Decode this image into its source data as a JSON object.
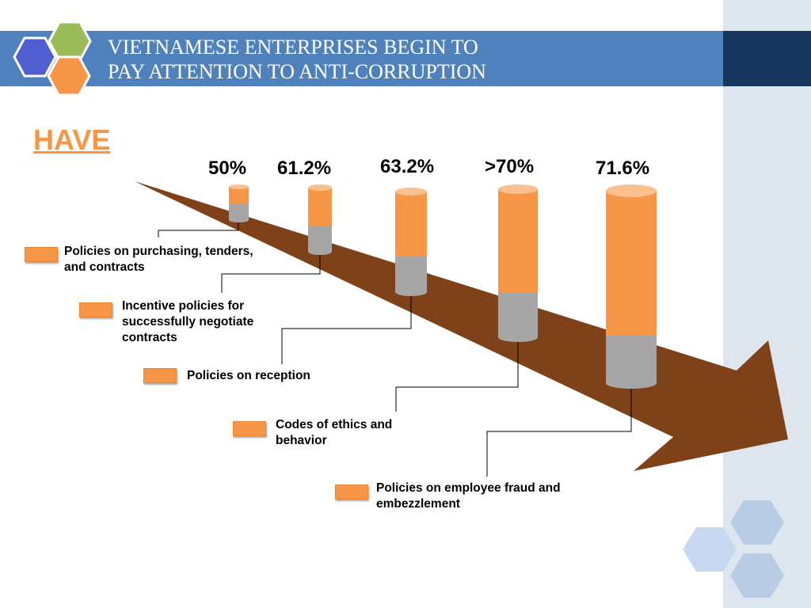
{
  "title": {
    "line1": "VIETNAMESE ENTERPRISES BEGIN TO",
    "line2": "PAY ATTENTION TO ANTI-CORRUPTION"
  },
  "heading": "HAVE",
  "percentages": [
    "50%",
    "61.2%",
    "63.2%",
    ">70%",
    "71.6%"
  ],
  "legend": [
    {
      "label": "Policies on purchasing, tenders, and contracts"
    },
    {
      "label": "Incentive policies for successfully negotiate contracts"
    },
    {
      "label": "Policies on reception"
    },
    {
      "label": "Codes of ethics and behavior"
    },
    {
      "label": "Policies on employee fraud and embezzlement"
    }
  ],
  "colors": {
    "accent": "#f79646",
    "title_bar": "#4f81bd",
    "title_bar_dark": "#17375e",
    "arrow": "#7f4117",
    "cylinder_gray": "#a6a6a6"
  }
}
